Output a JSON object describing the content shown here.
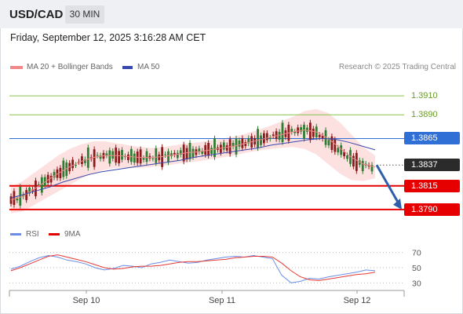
{
  "header": {
    "pair": "USD/CAD",
    "timeframe": "30 MIN"
  },
  "datetime": "Friday, September 12, 2025 3:16:28 AM CET",
  "legend": {
    "ma20": "MA 20 + Bollinger Bands",
    "ma50": "MA 50",
    "credit": "Research © 2025 Trading Central"
  },
  "rsi_legend": {
    "rsi": "RSI",
    "ma": "9MA"
  },
  "colors": {
    "resistance_line": "#8bc34a",
    "pivot_line": "#2f6fd6",
    "support_line": "#e60000",
    "ma20": "#f08a8a",
    "ma50": "#3949ab",
    "bands": "#fde1e1",
    "candle_up": "#2e7d32",
    "candle_down": "#8e1b1b",
    "arrow": "#2f5faa",
    "rsi": "#6a8ee8",
    "rsi_ma": "#e53935"
  },
  "chart_data": {
    "type": "line",
    "instrument": "USD/CAD",
    "x_ticks": [
      "Sep 10",
      "Sep 11",
      "Sep 12"
    ],
    "price_ylim": [
      1.3775,
      1.3935
    ],
    "levels": [
      {
        "value": "1.3910",
        "kind": "resistance"
      },
      {
        "value": "1.3890",
        "kind": "resistance"
      },
      {
        "value": "1.3865",
        "kind": "pivot"
      },
      {
        "value": "1.3837",
        "kind": "last"
      },
      {
        "value": "1.3815",
        "kind": "support"
      },
      {
        "value": "1.3790",
        "kind": "support"
      }
    ],
    "forecast_arrow": {
      "from": 1.3837,
      "to": 1.379
    },
    "rsi_levels": [
      "70",
      "50",
      "30"
    ],
    "rsi_ylim": [
      20,
      80
    ],
    "series": [
      {
        "name": "MA 20 + Bollinger Bands",
        "values": [
          1.38,
          1.3804,
          1.3812,
          1.382,
          1.3828,
          1.3835,
          1.3841,
          1.3845,
          1.3847,
          1.3847,
          1.3846,
          1.3845,
          1.3845,
          1.3846,
          1.3848,
          1.385,
          1.3851,
          1.3853,
          1.3855,
          1.3857,
          1.386,
          1.3863,
          1.3866,
          1.3869,
          1.3872,
          1.3874,
          1.3872,
          1.3865,
          1.3855,
          1.3845,
          1.3838,
          1.3835
        ]
      },
      {
        "name": "MA 50",
        "values": [
          1.3802,
          1.3806,
          1.381,
          1.3814,
          1.3819,
          1.3823,
          1.3827,
          1.383,
          1.3832,
          1.3834,
          1.3836,
          1.3838,
          1.384,
          1.3842,
          1.3845,
          1.3847,
          1.3849,
          1.3851,
          1.3853,
          1.3855,
          1.3858,
          1.386,
          1.3862,
          1.3864,
          1.3865,
          1.3864,
          1.3861,
          1.3857,
          1.3853
        ]
      },
      {
        "name": "RSI",
        "values": [
          48,
          52,
          58,
          63,
          66,
          64,
          60,
          58,
          55,
          50,
          47,
          49,
          53,
          52,
          50,
          55,
          57,
          60,
          58,
          56,
          57,
          60,
          62,
          64,
          65,
          64,
          66,
          64,
          62,
          40,
          30,
          32,
          36,
          35,
          38,
          40,
          42,
          44,
          47,
          46
        ]
      },
      {
        "name": "9MA",
        "values": [
          46,
          50,
          55,
          60,
          65,
          67,
          64,
          61,
          58,
          54,
          50,
          48,
          49,
          51,
          52,
          52,
          53,
          55,
          57,
          58,
          58,
          59,
          60,
          61,
          63,
          64,
          65,
          65,
          64,
          56,
          46,
          38,
          34,
          33,
          35,
          37,
          39,
          41,
          42,
          44
        ]
      }
    ]
  }
}
